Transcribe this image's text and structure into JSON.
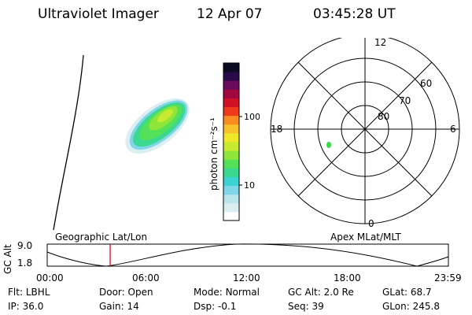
{
  "header": {
    "instrument": "Ultraviolet Imager",
    "date": "12 Apr 07",
    "time": "03:45:28 UT"
  },
  "colorbar": {
    "label": "photon cm⁻²s⁻¹",
    "ticks": [
      "100",
      "10"
    ],
    "colors": [
      "#ffffff",
      "#dbeef2",
      "#b8e4ea",
      "#7fd6e6",
      "#3ed2d2",
      "#3ad890",
      "#55e05a",
      "#8ee63a",
      "#c8ea30",
      "#f0e62a",
      "#f7c22a",
      "#f88c22",
      "#ee3a1a",
      "#d01024",
      "#a00840",
      "#6a0a5a",
      "#2a0a4a",
      "#0a0a22"
    ]
  },
  "polar": {
    "ring_labels": [
      "80",
      "70",
      "60"
    ],
    "mlt_labels": {
      "top": "12",
      "left": "18",
      "right": "6",
      "bottom": "0"
    },
    "spot_color": "#33dd44"
  },
  "altitude_plot": {
    "axis_title": "GC Alt",
    "y_ticks": [
      "9.0",
      "1.8"
    ],
    "left_label": "Geographic Lat/Lon",
    "right_label": "Apex MLat/MLT",
    "x_ticks": [
      "00:00",
      "06:00",
      "12:00",
      "18:00",
      "23:59"
    ],
    "current_time_marker_color": "#dd0000"
  },
  "info": {
    "row1": [
      {
        "label": "Flt:",
        "value": "LBHL"
      },
      {
        "label": "Door:",
        "value": "Open"
      },
      {
        "label": "Mode:",
        "value": "Normal"
      },
      {
        "label": "GC Alt:",
        "value": "2.0 Re"
      },
      {
        "label": "GLat:",
        "value": "68.7"
      }
    ],
    "row2": [
      {
        "label": "IP:",
        "value": "36.0"
      },
      {
        "label": "Gain:",
        "value": "14"
      },
      {
        "label": "Dsp:",
        "value": "-0.1"
      },
      {
        "label": "Seq:",
        "value": "39"
      },
      {
        "label": "GLon:",
        "value": "245.8"
      }
    ]
  }
}
